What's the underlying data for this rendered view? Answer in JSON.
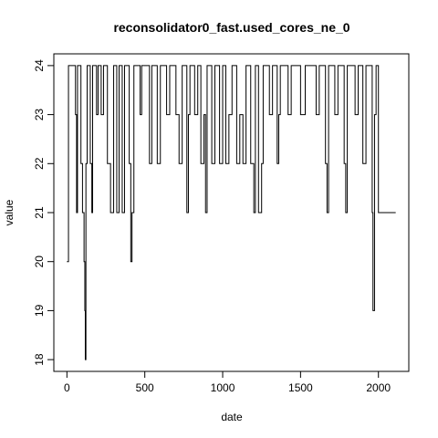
{
  "chart_data": {
    "type": "line",
    "title": "reconsolidator0_fast.used_cores_ne_0",
    "x_label": "date",
    "y_label": "value",
    "step": true,
    "color": "#000000",
    "x": [
      0,
      10,
      55,
      62,
      68,
      90,
      100,
      110,
      115,
      118,
      122,
      130,
      150,
      160,
      165,
      190,
      200,
      220,
      235,
      260,
      280,
      290,
      300,
      320,
      335,
      355,
      370,
      400,
      410,
      418,
      430,
      470,
      480,
      530,
      545,
      580,
      600,
      640,
      660,
      700,
      720,
      740,
      770,
      780,
      790,
      820,
      840,
      860,
      880,
      890,
      900,
      930,
      950,
      980,
      1000,
      1020,
      1040,
      1060,
      1090,
      1110,
      1130,
      1150,
      1180,
      1200,
      1210,
      1230,
      1250,
      1260,
      1300,
      1320,
      1350,
      1360,
      1370,
      1420,
      1440,
      1500,
      1530,
      1600,
      1620,
      1660,
      1670,
      1680,
      1720,
      1740,
      1780,
      1790,
      1800,
      1850,
      1870,
      1900,
      1920,
      1960,
      1965,
      1975,
      1985,
      2000,
      2111
    ],
    "values": [
      20,
      24,
      23,
      21,
      24,
      22,
      21,
      20,
      19,
      18,
      22,
      24,
      22,
      21,
      24,
      23,
      24,
      23,
      24,
      22,
      21,
      21,
      24,
      21,
      24,
      21,
      24,
      22,
      20,
      21,
      24,
      23,
      24,
      22,
      24,
      22,
      24,
      23,
      24,
      23,
      22,
      24,
      21,
      23,
      24,
      23,
      24,
      22,
      23,
      21,
      24,
      22,
      24,
      22,
      24,
      22,
      23,
      24,
      22,
      23,
      22,
      24,
      22,
      21,
      24,
      21,
      22,
      24,
      23,
      24,
      22,
      23,
      24,
      23,
      24,
      23,
      24,
      23,
      24,
      22,
      21,
      24,
      23,
      24,
      22,
      21,
      24,
      23,
      24,
      22,
      24,
      21,
      19,
      23,
      24,
      21,
      21
    ],
    "xlim": [
      -84,
      2195
    ],
    "ylim": [
      17.76,
      24.24
    ],
    "xticks": [
      0,
      500,
      1000,
      1500,
      2000
    ],
    "yticks": [
      18,
      19,
      20,
      21,
      22,
      23,
      24
    ]
  }
}
